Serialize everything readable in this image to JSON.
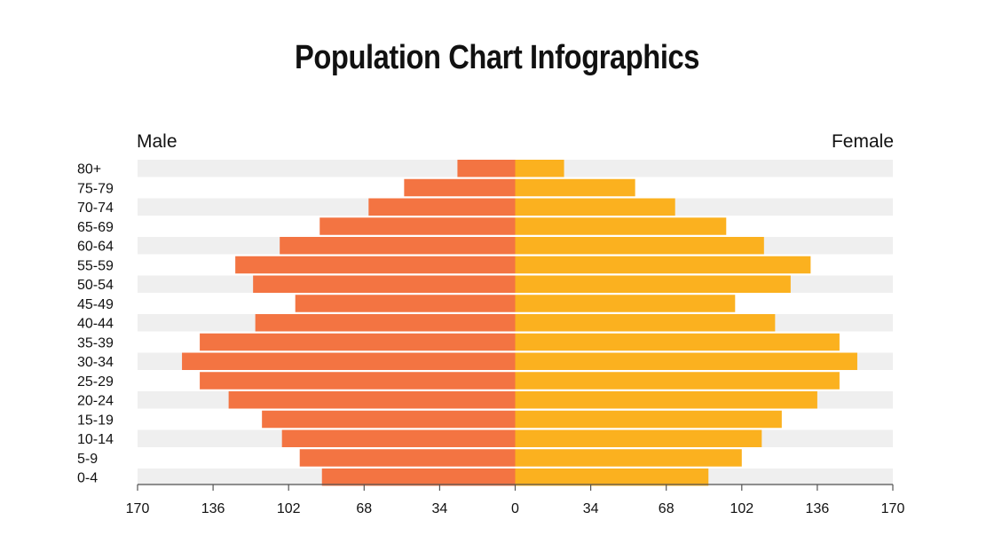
{
  "chart_data": {
    "type": "bar",
    "orientation": "horizontal-pyramid",
    "title": "Population Chart Infographics",
    "categories": [
      "80+",
      "75-79",
      "70-74",
      "65-69",
      "60-64",
      "55-59",
      "50-54",
      "45-49",
      "40-44",
      "35-39",
      "30-34",
      "25-29",
      "20-24",
      "15-19",
      "10-14",
      "5-9",
      "0-4"
    ],
    "series": [
      {
        "name": "Male",
        "color": "#F37442",
        "side": "left",
        "values": [
          26,
          50,
          66,
          88,
          106,
          126,
          118,
          99,
          117,
          142,
          150,
          142,
          129,
          114,
          105,
          97,
          87
        ]
      },
      {
        "name": "Female",
        "color": "#FBB11F",
        "side": "right",
        "values": [
          22,
          54,
          72,
          95,
          112,
          133,
          124,
          99,
          117,
          146,
          154,
          146,
          136,
          120,
          111,
          102,
          87
        ]
      }
    ],
    "xlim": [
      -170,
      170
    ],
    "xticks": [
      "170",
      "136",
      "102",
      "68",
      "34",
      "0",
      "34",
      "68",
      "102",
      "136",
      "170"
    ],
    "band_color": "#EFEFEF",
    "grid": false
  }
}
